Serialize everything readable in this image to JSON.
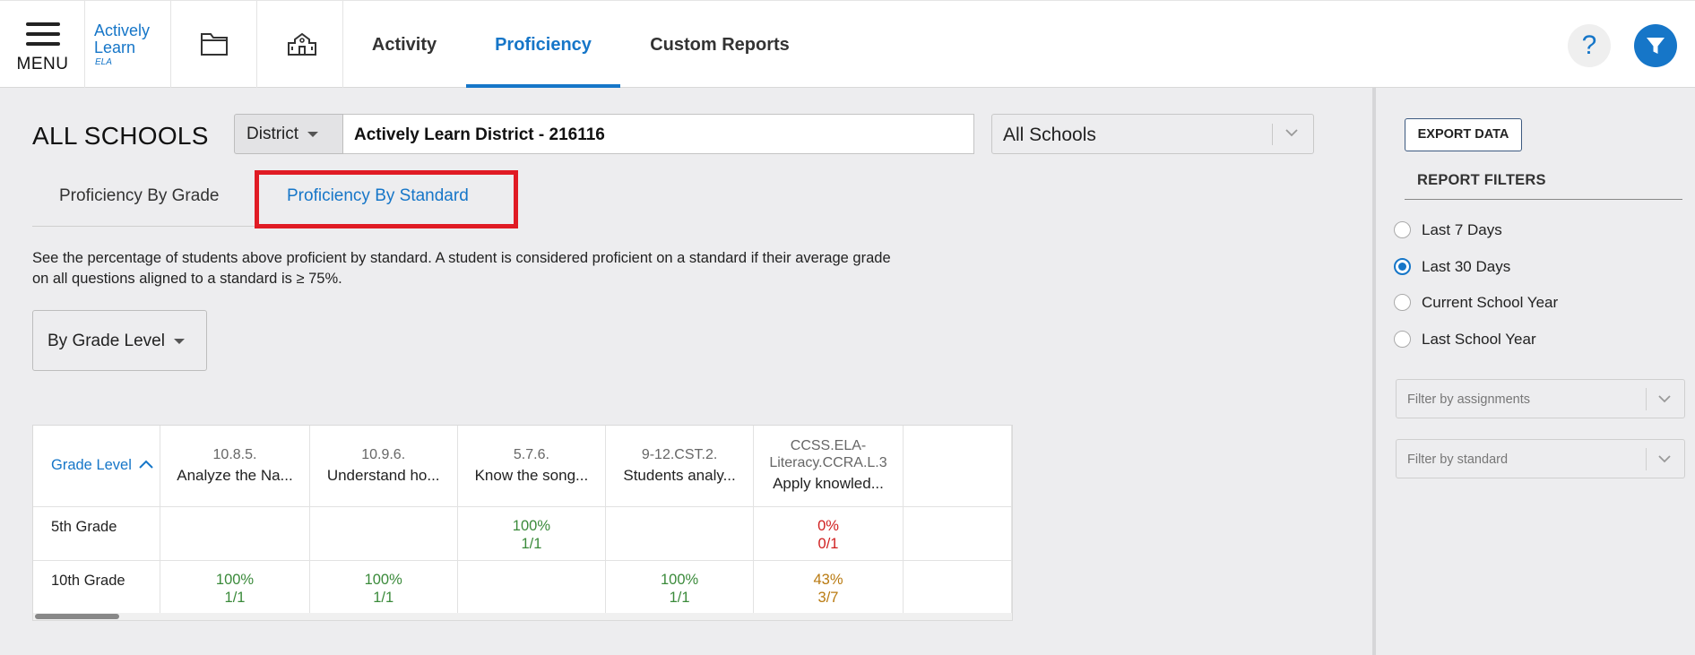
{
  "header": {
    "menu_label": "MENU",
    "logo": {
      "line1": "Actively",
      "line2": "Learn",
      "line3": "ELA"
    },
    "icons": [
      "folder-icon",
      "school-icon"
    ],
    "tabs": [
      {
        "label": "Activity",
        "active": false
      },
      {
        "label": "Proficiency",
        "active": true
      },
      {
        "label": "Custom Reports",
        "active": false
      }
    ],
    "help_label": "?"
  },
  "main": {
    "page_title": "ALL SCHOOLS",
    "district_label": "District",
    "district_value": "Actively Learn District - 216116",
    "school_select": "All Schools",
    "subtabs": [
      {
        "label": "Proficiency By Grade",
        "active": false
      },
      {
        "label": "Proficiency By Standard",
        "active": true
      }
    ],
    "description_line1": "See the percentage of students above proficient by standard. A student is considered proficient on a standard if their average grade",
    "description_line2": "on all questions aligned to a standard is ≥ 75%.",
    "group_by": "By Grade Level"
  },
  "table": {
    "first_column_header": "Grade Level",
    "standards": [
      {
        "code": "10.8.5.",
        "name": "Analyze the Na..."
      },
      {
        "code": "10.9.6.",
        "name": "Understand ho..."
      },
      {
        "code": "5.7.6.",
        "name": "Know the song..."
      },
      {
        "code": "9-12.CST.2.",
        "name": "Students analy..."
      },
      {
        "code_line1": "CCSS.ELA-",
        "code_line2": "Literacy.CCRA.L.3",
        "name": "Apply knowled..."
      }
    ],
    "rows": [
      {
        "grade": "5th Grade",
        "cells": [
          null,
          null,
          {
            "pct": "100%",
            "ratio": "1/1",
            "status": "green"
          },
          null,
          {
            "pct": "0%",
            "ratio": "0/1",
            "status": "red"
          }
        ]
      },
      {
        "grade": "10th Grade",
        "cells": [
          {
            "pct": "100%",
            "ratio": "1/1",
            "status": "green"
          },
          {
            "pct": "100%",
            "ratio": "1/1",
            "status": "green"
          },
          null,
          {
            "pct": "100%",
            "ratio": "1/1",
            "status": "green"
          },
          {
            "pct": "43%",
            "ratio": "3/7",
            "status": "amber"
          }
        ]
      }
    ]
  },
  "right_panel": {
    "export_label": "EXPORT DATA",
    "filters_title": "REPORT FILTERS",
    "date_options": [
      {
        "label": "Last 7 Days",
        "checked": false
      },
      {
        "label": "Last 30 Days",
        "checked": true
      },
      {
        "label": "Current School Year",
        "checked": false
      },
      {
        "label": "Last School Year",
        "checked": false
      }
    ],
    "assignment_placeholder": "Filter by assignments",
    "standard_placeholder": "Filter by standard"
  },
  "colors": {
    "accent": "#1676c8",
    "highlight": "#e01b24",
    "proficient": "#3a8a3a",
    "below": "#d01f1f",
    "partial": "#b97a10"
  }
}
